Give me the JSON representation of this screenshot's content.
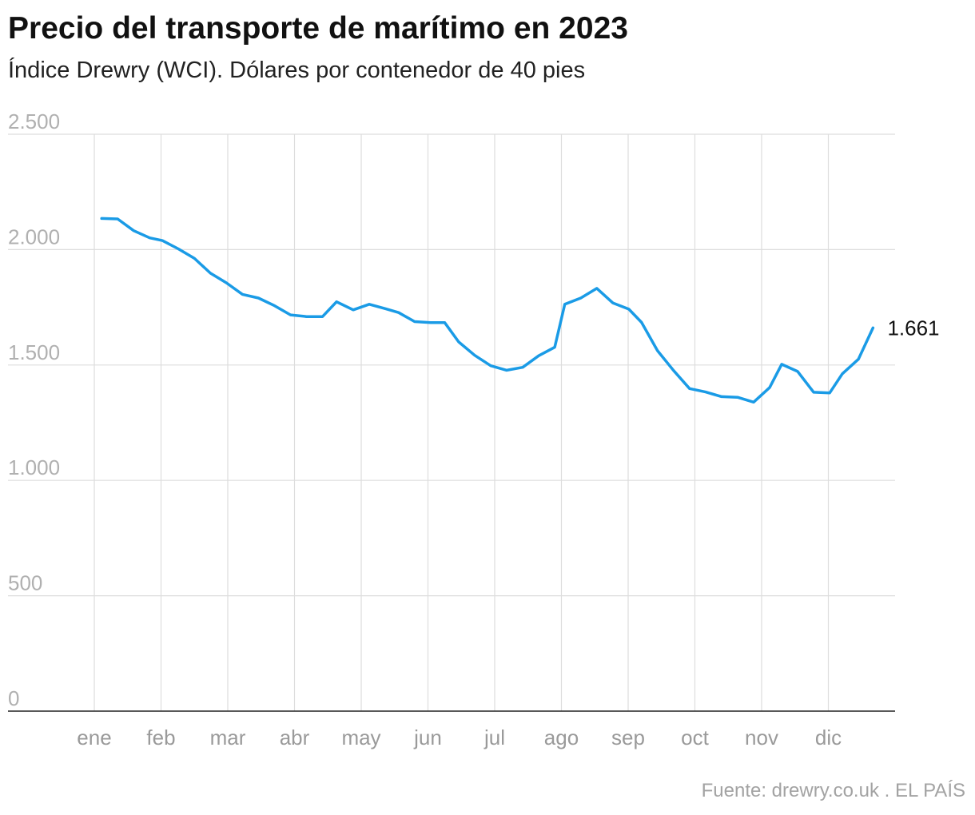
{
  "title": "Precio del transporte de marítimo en 2023",
  "subtitle": "Índice Drewry (WCI). Dólares por contenedor de 40 pies",
  "source": "Fuente: drewry.co.uk . EL PAÍS",
  "colors": {
    "line": "#1a9be6",
    "grid": "#dddddd",
    "axis": "#222222"
  },
  "chart_data": {
    "type": "line",
    "title": "Precio del transporte de marítimo en 2023",
    "subtitle": "Índice Drewry (WCI). Dólares por contenedor de 40 pies",
    "ylim": [
      0,
      2500
    ],
    "yticks": [
      0,
      500,
      1000,
      1500,
      2000,
      2500
    ],
    "ytick_labels": [
      "0",
      "500",
      "1.000",
      "1.500",
      "2.000",
      "2.500"
    ],
    "xlim": [
      0,
      12
    ],
    "xticks": [
      0,
      1,
      2,
      3,
      4,
      5,
      6,
      7,
      8,
      9,
      10,
      11
    ],
    "xtick_labels": [
      "ene",
      "feb",
      "mar",
      "abr",
      "may",
      "jun",
      "jul",
      "ago",
      "sep",
      "oct",
      "nov",
      "dic"
    ],
    "grid": true,
    "end_label": "1.661",
    "series": [
      {
        "x": [
          0.11,
          0.35,
          0.59,
          0.83,
          1.02,
          1.26,
          1.5,
          1.74,
          1.98,
          2.22,
          2.46,
          2.7,
          2.94,
          3.18,
          3.42,
          3.63,
          3.88,
          4.12,
          4.36,
          4.56,
          4.8,
          5.04,
          5.25,
          5.46,
          5.7,
          5.94,
          6.18,
          6.42,
          6.66,
          6.9,
          7.05,
          7.29,
          7.53,
          7.77,
          8.01,
          8.2,
          8.44,
          8.68,
          8.92,
          9.16,
          9.4,
          9.64,
          9.88,
          10.12,
          10.3,
          10.54,
          10.78,
          11.02,
          11.21,
          11.45,
          11.67
        ],
        "y": [
          2135,
          2133,
          2082,
          2051,
          2039,
          2003,
          1962,
          1898,
          1856,
          1806,
          1790,
          1757,
          1717,
          1710,
          1710,
          1774,
          1739,
          1763,
          1744,
          1727,
          1688,
          1684,
          1684,
          1600,
          1542,
          1497,
          1477,
          1490,
          1540,
          1577,
          1763,
          1790,
          1832,
          1769,
          1742,
          1685,
          1562,
          1476,
          1398,
          1383,
          1363,
          1360,
          1339,
          1402,
          1503,
          1472,
          1382,
          1379,
          1462,
          1525,
          1661
        ]
      }
    ]
  }
}
